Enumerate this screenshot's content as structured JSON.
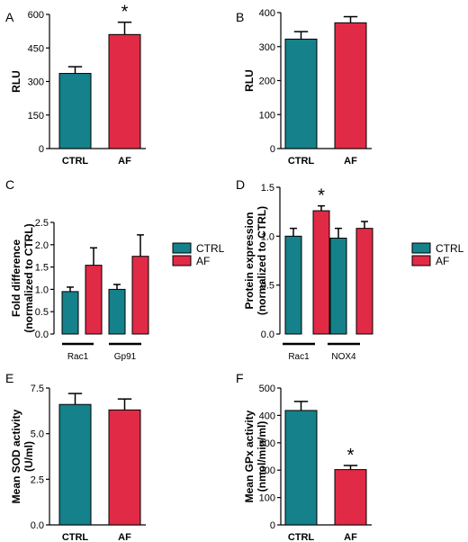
{
  "colors": {
    "ctrl": "#15818A",
    "af": "#E12A45",
    "axis": "#000000"
  },
  "legend": {
    "entries": [
      "CTRL",
      "AF"
    ]
  },
  "chart_data": [
    {
      "panel": "A",
      "type": "bar",
      "categories": [
        "CTRL",
        "AF"
      ],
      "values": [
        336,
        510
      ],
      "errors": [
        30,
        55
      ],
      "ylabel": "RLU",
      "ylim": [
        0,
        600
      ],
      "yticks": [
        0,
        150,
        300,
        450,
        600
      ],
      "ytick_labels": [
        "0",
        "150",
        "300",
        "450",
        "600"
      ],
      "annotations": [
        {
          "index": 1,
          "text": "*"
        }
      ]
    },
    {
      "panel": "B",
      "type": "bar",
      "categories": [
        "CTRL",
        "AF"
      ],
      "values": [
        322,
        370
      ],
      "errors": [
        22,
        18
      ],
      "ylabel": "RLU",
      "ylim": [
        0,
        400
      ],
      "yticks": [
        0,
        100,
        200,
        300,
        400
      ],
      "ytick_labels": [
        "0",
        "100",
        "200",
        "300",
        "400"
      ],
      "annotations": []
    },
    {
      "panel": "C",
      "type": "bar",
      "groups": [
        "Rac1",
        "Gp91"
      ],
      "series": [
        {
          "name": "CTRL",
          "values": [
            0.95,
            1.0
          ],
          "errors": [
            0.1,
            0.11
          ]
        },
        {
          "name": "AF",
          "values": [
            1.54,
            1.74
          ],
          "errors": [
            0.39,
            0.48
          ]
        }
      ],
      "ylabel": [
        "Fold difference",
        "(normalized to CTRL)"
      ],
      "ylim": [
        0,
        2.5
      ],
      "yticks": [
        0,
        0.5,
        1.0,
        1.5,
        2.0,
        2.5
      ],
      "ytick_labels": [
        "0.0",
        "0.5",
        "1.0",
        "1.5",
        "2.0",
        "2.5"
      ],
      "legend_position": "right"
    },
    {
      "panel": "D",
      "type": "bar",
      "groups": [
        "Rac1",
        "NOX4"
      ],
      "series": [
        {
          "name": "CTRL",
          "values": [
            1.0,
            0.98
          ],
          "errors": [
            0.08,
            0.1
          ]
        },
        {
          "name": "AF",
          "values": [
            1.26,
            1.08
          ],
          "errors": [
            0.05,
            0.07
          ]
        }
      ],
      "ylabel": [
        "Protein expression",
        "(normalized to CTRL)"
      ],
      "ylim": [
        0,
        1.5
      ],
      "yticks": [
        0,
        0.5,
        1.0,
        1.5
      ],
      "ytick_labels": [
        "0.0",
        "0.5",
        "1.0",
        "1.5"
      ],
      "annotations": [
        {
          "group": 0,
          "series": 1,
          "text": "*"
        }
      ],
      "legend_position": "right"
    },
    {
      "panel": "E",
      "type": "bar",
      "categories": [
        "CTRL",
        "AF"
      ],
      "values": [
        6.6,
        6.3
      ],
      "errors": [
        0.6,
        0.6
      ],
      "ylabel": [
        "Mean SOD activity",
        "(U/ml)"
      ],
      "ylim": [
        0,
        7.5
      ],
      "yticks": [
        0,
        2.5,
        5.0,
        7.5
      ],
      "ytick_labels": [
        "0.0",
        "2.5",
        "5.0",
        "7.5"
      ],
      "annotations": []
    },
    {
      "panel": "F",
      "type": "bar",
      "categories": [
        "CTRL",
        "AF"
      ],
      "values": [
        418,
        202
      ],
      "errors": [
        33,
        15
      ],
      "ylabel": [
        "Mean GPx activity",
        "(nmol/min/ml)"
      ],
      "ylim": [
        0,
        500
      ],
      "yticks": [
        0,
        100,
        200,
        300,
        400,
        500
      ],
      "ytick_labels": [
        "0",
        "100",
        "200",
        "300",
        "400",
        "500"
      ],
      "annotations": [
        {
          "index": 1,
          "text": "*"
        }
      ]
    }
  ]
}
